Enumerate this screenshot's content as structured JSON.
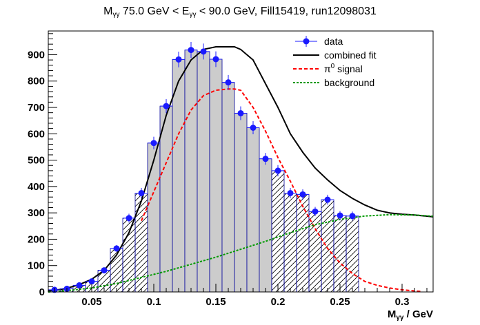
{
  "title": {
    "prefix": "M",
    "prefix_sub": "γγ",
    "mid": " 75.0 GeV < E",
    "mid_sub": "γγ",
    "suffix": " < 90.0 GeV, Fill15419, run12098031"
  },
  "xlabel": {
    "main": "M",
    "sub": "γγ",
    "unit": " / GeV"
  },
  "colors": {
    "data": "#1a1aff",
    "fit": "#000000",
    "signal": "#ff0000",
    "background": "#009900",
    "fill_gray": "#cccccc",
    "hist_line": "#000099"
  },
  "chart_data": {
    "type": "scatter",
    "xlim": [
      0.015,
      0.325
    ],
    "ylim": [
      0,
      990
    ],
    "bin_width": 0.01,
    "signal_region": [
      0.1,
      0.2
    ],
    "x_ticks": [
      0.05,
      0.1,
      0.15,
      0.2,
      0.25,
      0.3
    ],
    "x_tick_labels": [
      "0.05",
      "0.1",
      "0.15",
      "0.2",
      "0.25",
      "0.3"
    ],
    "y_ticks": [
      0,
      100,
      200,
      300,
      400,
      500,
      600,
      700,
      800,
      900
    ],
    "y_tick_labels": [
      "0",
      "100",
      "200",
      "300",
      "400",
      "500",
      "600",
      "700",
      "800",
      "900"
    ],
    "grid": false,
    "legend_placement": "top-right",
    "series": [
      {
        "name": "data",
        "x": [
          0.02,
          0.03,
          0.04,
          0.05,
          0.06,
          0.07,
          0.08,
          0.09,
          0.1,
          0.11,
          0.12,
          0.13,
          0.14,
          0.15,
          0.16,
          0.17,
          0.18,
          0.19,
          0.2,
          0.21,
          0.22,
          0.23,
          0.24,
          0.25,
          0.26,
          0.27,
          0.28,
          0.29,
          0.3,
          0.31
        ],
        "values": [
          8,
          12,
          25,
          40,
          82,
          165,
          280,
          375,
          565,
          705,
          882,
          918,
          912,
          883,
          795,
          678,
          623,
          505,
          460,
          375,
          370,
          305,
          350,
          290,
          288,
          0,
          0,
          0,
          0,
          0
        ]
      },
      {
        "name": "combined fit",
        "x": [
          0.015,
          0.02,
          0.03,
          0.04,
          0.05,
          0.06,
          0.07,
          0.08,
          0.09,
          0.1,
          0.11,
          0.12,
          0.13,
          0.14,
          0.15,
          0.16,
          0.165,
          0.17,
          0.18,
          0.19,
          0.2,
          0.21,
          0.22,
          0.23,
          0.24,
          0.25,
          0.26,
          0.27,
          0.28,
          0.29,
          0.3,
          0.31,
          0.325
        ],
        "values": [
          4,
          6,
          14,
          28,
          48,
          82,
          140,
          225,
          345,
          500,
          670,
          800,
          880,
          920,
          930,
          930,
          930,
          920,
          880,
          790,
          700,
          600,
          530,
          470,
          425,
          385,
          355,
          330,
          310,
          300,
          295,
          292,
          285
        ]
      },
      {
        "name": "π0 signal",
        "x": [
          0.09,
          0.1,
          0.11,
          0.12,
          0.13,
          0.14,
          0.15,
          0.16,
          0.165,
          0.17,
          0.18,
          0.19,
          0.2,
          0.21,
          0.22,
          0.23,
          0.24,
          0.25,
          0.26,
          0.27,
          0.28,
          0.29,
          0.3,
          0.31,
          0.315
        ],
        "values": [
          270,
          380,
          490,
          600,
          690,
          745,
          765,
          770,
          770,
          765,
          700,
          610,
          510,
          420,
          325,
          240,
          165,
          110,
          70,
          40,
          25,
          15,
          8,
          4,
          2
        ]
      },
      {
        "name": "background",
        "x": [
          0.015,
          0.03,
          0.05,
          0.07,
          0.09,
          0.11,
          0.13,
          0.15,
          0.17,
          0.19,
          0.21,
          0.23,
          0.25,
          0.27,
          0.29,
          0.31,
          0.325
        ],
        "values": [
          0,
          5,
          15,
          32,
          55,
          78,
          105,
          132,
          162,
          192,
          225,
          255,
          275,
          288,
          293,
          292,
          287
        ]
      }
    ]
  },
  "legend": [
    {
      "label": "data"
    },
    {
      "label": "combined fit"
    },
    {
      "label": "signal",
      "prefix": "π",
      "sup": "0"
    },
    {
      "label": "background"
    }
  ]
}
